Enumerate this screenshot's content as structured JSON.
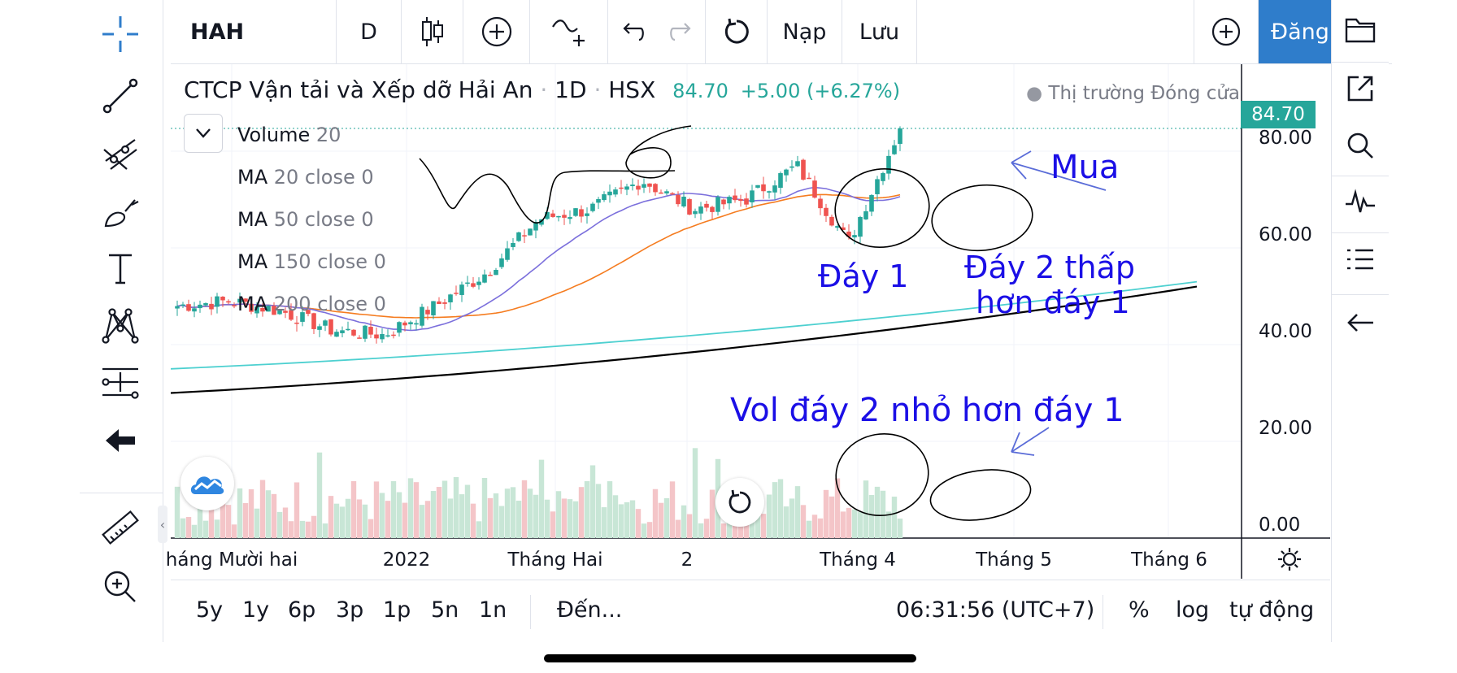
{
  "toolbar": {
    "symbol": "HAH",
    "interval": "D",
    "load_label": "Nạp",
    "save_label": "Lưu",
    "publish_label": "Đăng"
  },
  "legend": {
    "title": "CTCP Vận tải và Xếp dỡ Hải An",
    "interval": "1D",
    "exchange": "HSX",
    "price": "84.70",
    "change": "+5.00 (+6.27%)",
    "market_status": "Thị trường Đóng cửa",
    "indicators": [
      {
        "name": "Volume",
        "value": "20"
      },
      {
        "name": "MA",
        "value": "20 close 0"
      },
      {
        "name": "MA",
        "value": "50 close 0"
      },
      {
        "name": "MA",
        "value": "150 close 0"
      },
      {
        "name": "MA",
        "value": "200 close 0"
      }
    ]
  },
  "price_axis": {
    "current_price_label": "84.70",
    "ticks": [
      "80.00",
      "60.00",
      "40.00",
      "20.00",
      "0.00"
    ]
  },
  "time_axis": {
    "ticks": [
      "háng Mười hai",
      "2022",
      "Tháng Hai",
      "2",
      "Tháng 4",
      "Tháng 5",
      "Tháng 6"
    ]
  },
  "bottom_bar": {
    "ranges": [
      "5y",
      "1y",
      "6p",
      "3p",
      "1p",
      "5n",
      "1n"
    ],
    "goto_label": "Đến...",
    "clock": "06:31:56 (UTC+7)",
    "percent_label": "%",
    "log_label": "log",
    "auto_label": "tự động"
  },
  "annotations": {
    "buy": "Mua",
    "bottom1": "Đáy 1",
    "bottom2_line1": "Đáy 2 thấp",
    "bottom2_line2": "hơn đáy 1",
    "volume_note": "Vol đáy 2 nhỏ hơn đáy 1"
  },
  "colors": {
    "up": "#26a69a",
    "down": "#ef5350",
    "vol_up": "#c8e6d6",
    "vol_down": "#f4c5c8",
    "ma20": "#7b6fdc",
    "ma50": "#f57c20",
    "ma150": "#4dd0d0",
    "ma200": "#000000",
    "annotation": "#1b0fe6",
    "accent": "#2f7dcb"
  },
  "icons": {
    "left_toolbar": [
      "crosshair-icon",
      "trendline-icon",
      "pitchfork-icon",
      "brush-icon",
      "text-icon",
      "pattern-icon",
      "measure-forecast-icon",
      "back-arrow-icon",
      "ruler-icon",
      "zoom-in-icon"
    ],
    "right_panel": [
      "folder-icon",
      "open-external-icon",
      "search-icon",
      "pulse-icon",
      "list-icon",
      "arrow-left-icon"
    ]
  },
  "chart_data": {
    "type": "candlestick",
    "symbol": "HAH",
    "interval": "1D",
    "ylim": [
      0,
      84.7
    ],
    "last_close": 84.7,
    "price_path": [
      {
        "x": "late Nov 2021",
        "close": 48
      },
      {
        "x": "Dec 2021",
        "close": 49
      },
      {
        "x": "Jan 2022",
        "close": 47
      },
      {
        "x": "mid Jan 2022",
        "close": 43
      },
      {
        "x": "late Jan 2022",
        "close": 42
      },
      {
        "x": "Feb 2022",
        "close": 48
      },
      {
        "x": "mid Feb 2022",
        "close": 55
      },
      {
        "x": "Mar 2022",
        "close": 66
      },
      {
        "x": "mid Mar 2022",
        "close": 68
      },
      {
        "x": "late Mar 2022",
        "close": 74
      },
      {
        "x": "Apr 2022",
        "close": 68
      },
      {
        "x": "mid Apr 2022",
        "close": 70
      },
      {
        "x": "late Apr 2022",
        "close": 77
      },
      {
        "x": "end Apr 2022",
        "close": 61
      },
      {
        "x": "May 2022",
        "close": 84.7
      }
    ],
    "moving_averages": [
      {
        "name": "MA 20",
        "start": 48,
        "end": 72
      },
      {
        "name": "MA 50",
        "start": 49,
        "end": 68
      },
      {
        "name": "MA 150",
        "start": 35,
        "end": 53
      },
      {
        "name": "MA 200",
        "start": 30,
        "end": 52
      }
    ],
    "volume_peak": 20
  }
}
